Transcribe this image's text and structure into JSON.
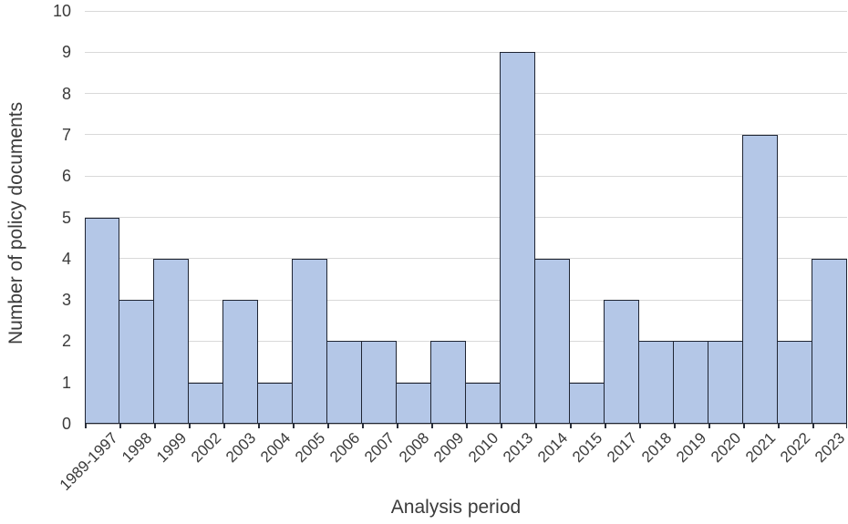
{
  "chart_data": {
    "type": "bar",
    "title": "",
    "xlabel": "Analysis period",
    "ylabel": "Number of policy documents",
    "categories": [
      "1989-1997",
      "1998",
      "1999",
      "2002",
      "2003",
      "2004",
      "2005",
      "2006",
      "2007",
      "2008",
      "2009",
      "2010",
      "2013",
      "2014",
      "2015",
      "2017",
      "2018",
      "2019",
      "2020",
      "2021",
      "2022",
      "2023"
    ],
    "values": [
      5,
      3,
      4,
      1,
      3,
      1,
      4,
      2,
      2,
      1,
      2,
      1,
      9,
      4,
      1,
      3,
      2,
      2,
      2,
      7,
      2,
      4
    ],
    "ylim": [
      0,
      10
    ],
    "yticks": [
      0,
      1,
      2,
      3,
      4,
      5,
      6,
      7,
      8,
      9,
      10
    ],
    "grid": "horizontal",
    "legend": "none",
    "bar_gap": 0,
    "colors": {
      "bar_fill": "#b4c7e7",
      "bar_border": "#1f2533",
      "gridline": "#d9d9d9",
      "axis_line": "#bfbfbf",
      "tick_mark": "#2a2f3a",
      "text": "#3b3b3b"
    }
  }
}
